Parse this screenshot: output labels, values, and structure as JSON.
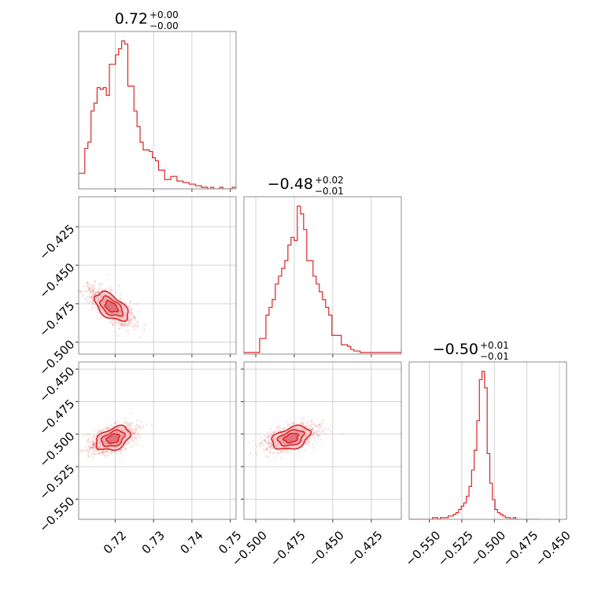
{
  "chart_data": {
    "type": "corner",
    "color": "#d62728",
    "grid": true,
    "parameters": [
      {
        "median": 0.72,
        "plus": 0.0,
        "minus": 0.0,
        "title": {
          "main": "0.72",
          "sup": "+0.00",
          "sub": "−0.00"
        },
        "range": [
          0.7105,
          0.7515
        ],
        "ticks": [
          0.72,
          0.73,
          0.74,
          0.75
        ],
        "tick_labels": [
          "0.72",
          "0.73",
          "0.74",
          "0.75"
        ]
      },
      {
        "median": -0.48,
        "plus": 0.02,
        "minus": 0.01,
        "title": {
          "main": "−0.48",
          "sup": "+0.02",
          "sub": "−0.01"
        },
        "range": [
          -0.5077,
          -0.4055
        ],
        "ticks": [
          -0.5,
          -0.475,
          -0.45,
          -0.425
        ],
        "tick_labels": [
          "−0.500",
          "−0.475",
          "−0.450",
          "−0.425"
        ]
      },
      {
        "median": -0.5,
        "plus": 0.01,
        "minus": 0.01,
        "title": {
          "main": "−0.50",
          "sup": "+0.01",
          "sub": "−0.01"
        },
        "range": [
          -0.5655,
          -0.4445
        ],
        "ticks": [
          -0.55,
          -0.525,
          -0.5,
          -0.475,
          -0.45
        ],
        "tick_labels": [
          "−0.550",
          "−0.525",
          "−0.500",
          "−0.475",
          "−0.450"
        ]
      }
    ],
    "histograms": [
      {
        "param": 0,
        "edges_start": 0.7105,
        "bin_width": 0.0008,
        "counts": [
          10,
          10,
          26,
          30,
          50,
          55,
          65,
          64,
          65,
          60,
          80,
          80,
          86,
          90,
          95,
          93,
          66,
          66,
          50,
          40,
          30,
          25,
          25,
          24,
          20,
          18,
          12,
          12,
          6,
          6,
          8,
          8,
          5,
          5,
          4,
          4,
          3,
          3,
          2,
          2,
          1,
          1,
          0,
          1,
          0,
          0,
          1,
          0,
          0,
          0,
          1,
          1
        ]
      },
      {
        "param": 1,
        "edges_start": -0.5077,
        "bin_width": 0.00204,
        "counts": [
          1,
          1,
          1,
          1,
          1,
          10,
          10,
          25,
          30,
          35,
          45,
          50,
          55,
          60,
          70,
          75,
          73,
          95,
          90,
          80,
          60,
          60,
          50,
          45,
          40,
          35,
          30,
          25,
          12,
          12,
          12,
          6,
          6,
          5,
          3,
          2,
          2,
          1,
          1,
          1,
          1,
          1,
          1,
          1,
          1,
          1,
          1,
          1,
          1,
          1
        ]
      },
      {
        "param": 2,
        "edges_start": -0.5655,
        "bin_width": 0.002,
        "counts": [
          0,
          0,
          0,
          0,
          0,
          0,
          0,
          0,
          0,
          1,
          1,
          0,
          1,
          1,
          1,
          2,
          2,
          3,
          4,
          6,
          8,
          10,
          14,
          20,
          30,
          42,
          60,
          85,
          90,
          80,
          40,
          22,
          12,
          6,
          4,
          3,
          2,
          1,
          1,
          0,
          1,
          0,
          0,
          0,
          0,
          0,
          0,
          0,
          0,
          0
        ]
      }
    ],
    "pairs": [
      {
        "x": 0,
        "y": 1,
        "center": [
          0.719,
          -0.477
        ],
        "spread": [
          0.003,
          -0.0055
        ],
        "n_points": 900
      },
      {
        "x": 0,
        "y": 2,
        "center": [
          0.7195,
          -0.5035
        ],
        "spread": [
          0.0032,
          0.004
        ],
        "n_points": 900
      },
      {
        "x": 1,
        "y": 2,
        "center": [
          -0.477,
          -0.503
        ],
        "spread": [
          0.009,
          0.0035
        ],
        "n_points": 900
      }
    ]
  }
}
